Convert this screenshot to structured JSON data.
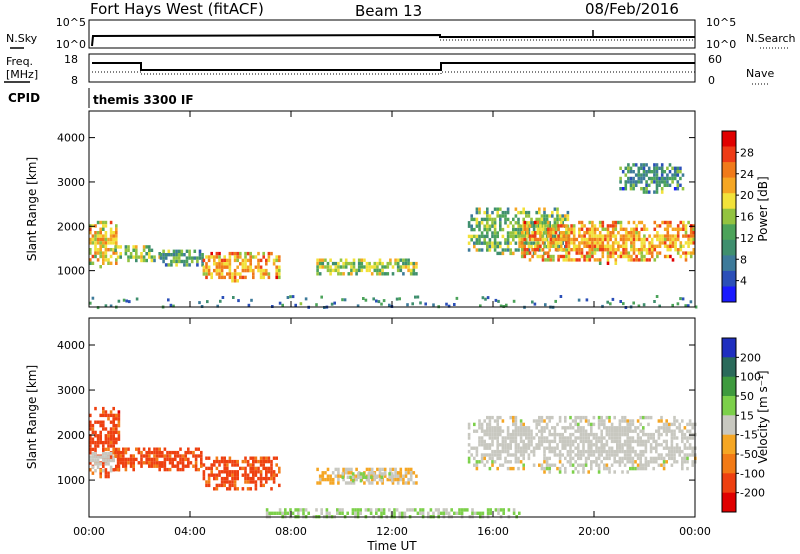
{
  "header": {
    "radar": "Fort Hays West (fitACF)",
    "beam": "Beam 13",
    "date": "08/Feb/2016"
  },
  "summary": {
    "nsky_label": "N.Sky",
    "nsearch_label": "N.Search",
    "freq_label_line1": "Freq.",
    "freq_label_line2": "[MHz]",
    "nave_label": "Nave",
    "cpid_label": "CPID",
    "cpid_value": "themis 3300 IF",
    "noise_left_ticks": [
      "10^5",
      "10^0"
    ],
    "noise_right_ticks": [
      "10^5",
      "10^0"
    ],
    "freq_ticks": [
      "18",
      "8"
    ],
    "nave_ticks": [
      "60",
      "0"
    ]
  },
  "chart_data": [
    {
      "type": "heatmap",
      "title": "",
      "xlabel": "Time UT",
      "ylabel": "Slant Range [km]",
      "xlim": [
        0,
        24
      ],
      "ylim": [
        180,
        4600
      ],
      "x_ticks": [
        "00:00",
        "04:00",
        "08:00",
        "12:00",
        "16:00",
        "20:00",
        "00:00"
      ],
      "y_ticks": [
        1000,
        2000,
        3000,
        4000
      ],
      "colorbar": {
        "label": "Power [dB]",
        "range": [
          0,
          32
        ],
        "ticks": [
          4,
          8,
          12,
          16,
          20,
          24,
          28
        ],
        "colors": [
          "#1a1aff",
          "#2b4fb8",
          "#3d7a9a",
          "#3f8f6e",
          "#4ca35a",
          "#93c340",
          "#f2e23a",
          "#f5a623",
          "#f07a1a",
          "#ee3b16",
          "#e00000"
        ]
      },
      "scatter_regions": [
        {
          "t0": 0.0,
          "t1": 1.1,
          "r0": 1100,
          "r1": 2200,
          "value": 20
        },
        {
          "t0": 1.0,
          "t1": 2.8,
          "r0": 1250,
          "r1": 1650,
          "value": 15
        },
        {
          "t0": 2.8,
          "t1": 4.5,
          "r0": 1100,
          "r1": 1550,
          "value": 12
        },
        {
          "t0": 4.5,
          "t1": 7.5,
          "r0": 800,
          "r1": 1500,
          "value": 22
        },
        {
          "t0": 9.0,
          "t1": 13.0,
          "r0": 900,
          "r1": 1350,
          "value": 16
        },
        {
          "t0": 15.0,
          "t1": 19.0,
          "r0": 1400,
          "r1": 2500,
          "value": 14
        },
        {
          "t0": 17.0,
          "t1": 24.0,
          "r0": 1200,
          "r1": 2200,
          "value": 22
        },
        {
          "t0": 21.0,
          "t1": 23.5,
          "r0": 2800,
          "r1": 3500,
          "value": 10
        }
      ]
    },
    {
      "type": "heatmap",
      "title": "",
      "xlabel": "Time UT",
      "ylabel": "Slant Range [km]",
      "xlim": [
        0,
        24
      ],
      "ylim": [
        180,
        4600
      ],
      "x_ticks": [
        "00:00",
        "04:00",
        "08:00",
        "12:00",
        "16:00",
        "20:00",
        "00:00"
      ],
      "y_ticks": [
        1000,
        2000,
        3000,
        4000
      ],
      "colorbar": {
        "label": "Velocity [m s⁻¹]",
        "range": [
          -240,
          240
        ],
        "ticks": [
          "200",
          "100",
          "50",
          "15",
          "-15",
          "-50",
          "-100",
          "-200"
        ],
        "colors": [
          "#1f2fbf",
          "#2a6a5a",
          "#3e9a3e",
          "#7cd04a",
          "#c8c8c0",
          "#f5a623",
          "#f27a15",
          "#ee4010",
          "#e00000"
        ]
      },
      "scatter_regions": [
        {
          "t0": 0.0,
          "t1": 1.2,
          "r0": 1100,
          "r1": 2700,
          "value": -150
        },
        {
          "t0": 0.0,
          "t1": 1.0,
          "r0": 1200,
          "r1": 1700,
          "value": 0
        },
        {
          "t0": 1.0,
          "t1": 4.5,
          "r0": 1200,
          "r1": 1800,
          "value": -150
        },
        {
          "t0": 4.5,
          "t1": 7.5,
          "r0": 800,
          "r1": 1600,
          "value": -150
        },
        {
          "t0": 9.0,
          "t1": 13.0,
          "r0": 900,
          "r1": 1350,
          "value": -30
        },
        {
          "t0": 10.0,
          "t1": 12.0,
          "r0": 1000,
          "r1": 1250,
          "value": 20
        },
        {
          "t0": 15.0,
          "t1": 24.0,
          "r0": 1200,
          "r1": 2500,
          "value": 0
        },
        {
          "t0": 7.0,
          "t1": 17.0,
          "r0": 200,
          "r1": 450,
          "value": 30
        }
      ]
    }
  ]
}
